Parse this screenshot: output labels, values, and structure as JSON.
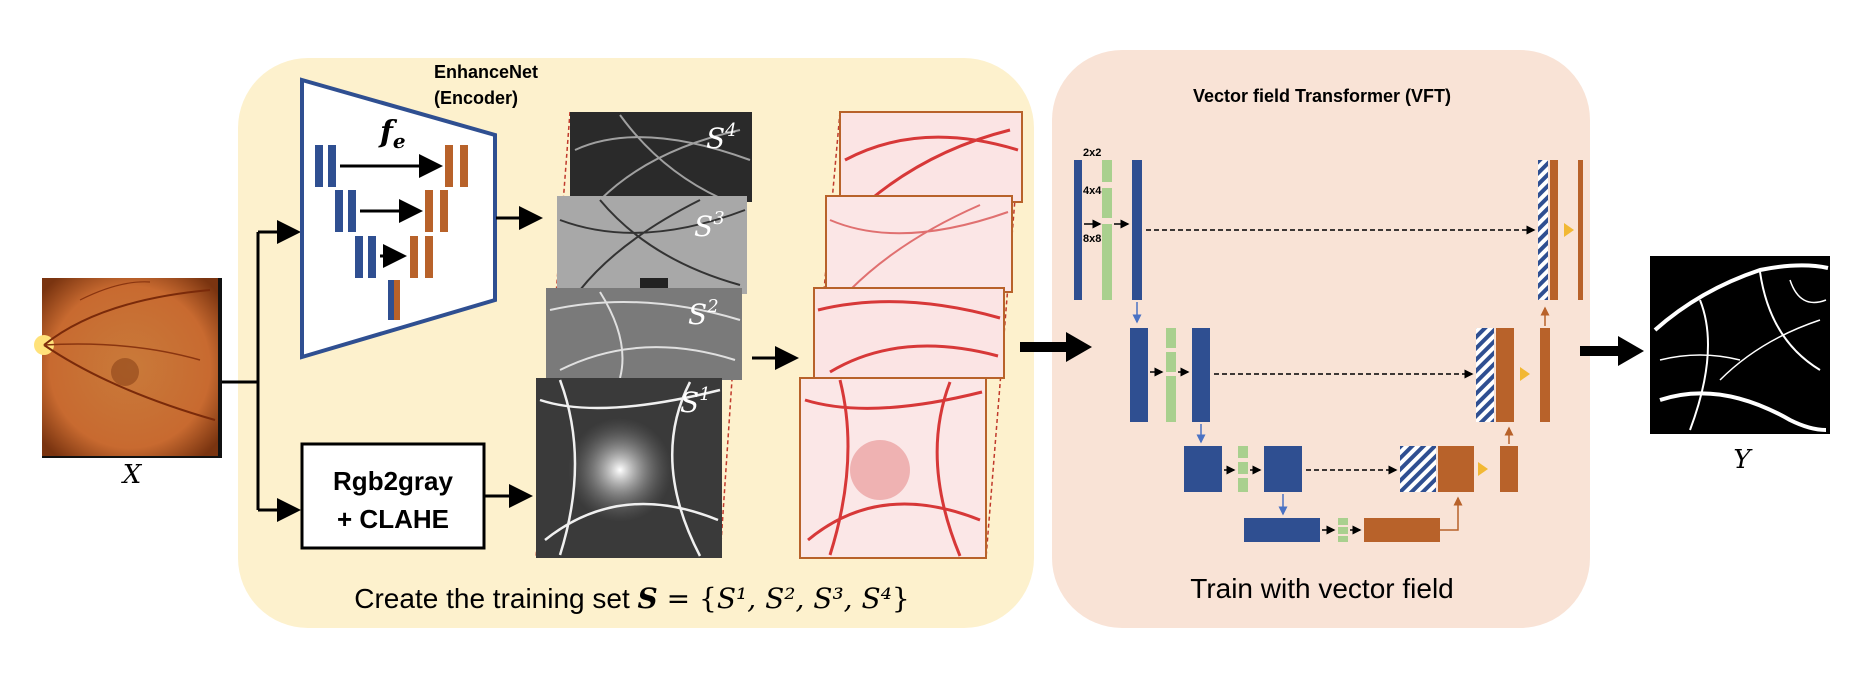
{
  "input_label": "X",
  "output_label": "Y",
  "encoder": {
    "title_line1": "EnhanceNet",
    "title_line2": "(Encoder)",
    "symbol": "f",
    "symbol_sub": "e"
  },
  "preprocess": {
    "line1": "Rgb2gray",
    "line2": "+ CLAHE"
  },
  "stack_labels": {
    "s4": "4",
    "s3": "3",
    "s2": "2",
    "s1": "1",
    "base": "S"
  },
  "training_caption": {
    "prefix": "Create the training set ",
    "symbol": "S",
    "equals": " = {",
    "items": "S¹, S², S³, S⁴",
    "suffix": "}"
  },
  "vft": {
    "title": "Vector field Transformer (VFT)",
    "scale1": "2x2",
    "scale2": "4x4",
    "scale3": "8x8",
    "caption": "Train with vector field"
  },
  "colors": {
    "yellow_panel": "#fdf1cd",
    "peach_panel": "#f9e3d6",
    "blue": "#2f4f91",
    "orange": "#b8622a",
    "green": "#a9d08e",
    "gold": "#f2b833",
    "red": "#c0392b"
  }
}
